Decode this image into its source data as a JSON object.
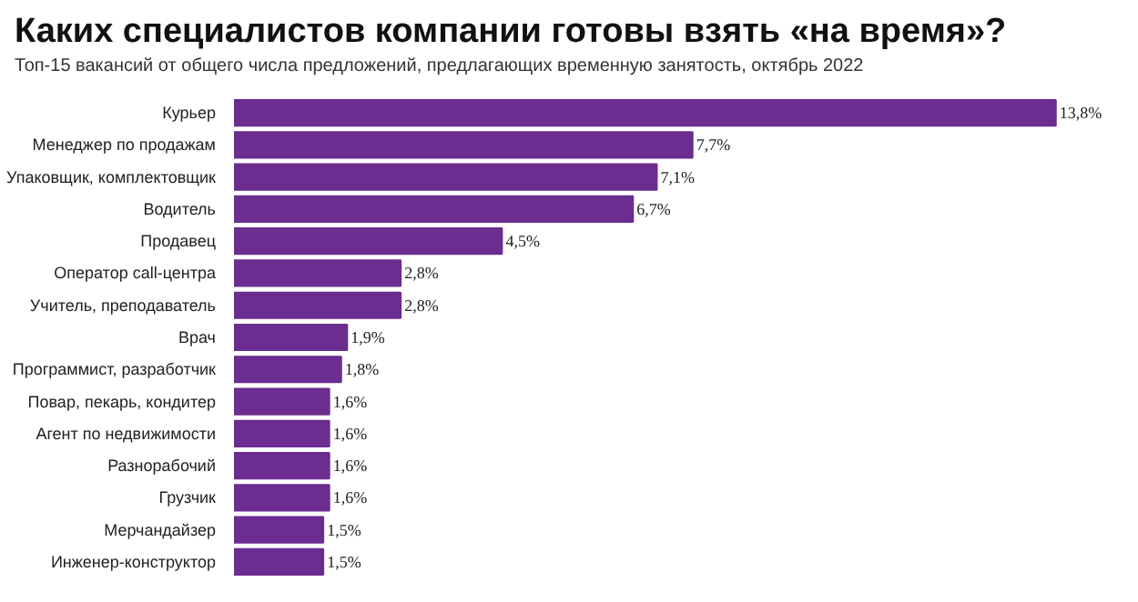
{
  "chart_data": {
    "type": "bar",
    "orientation": "horizontal",
    "title": "Каких специалистов компании готовы взять «на время»?",
    "subtitle": "Топ-15 вакансий от общего числа предложений, предлагающих временную занятость, октябрь 2022",
    "categories": [
      "Курьер",
      "Менеджер по продажам",
      "Упаковщик, комплектовщик",
      "Водитель",
      "Продавец",
      "Оператор call-центра",
      "Учитель, преподаватель",
      "Врач",
      "Программист, разработчик",
      "Повар, пекарь, кондитер",
      "Агент по недвижимости",
      "Разнорабочий",
      "Грузчик",
      "Мерчандайзер",
      "Инженер-конструктор"
    ],
    "values": [
      13.8,
      7.7,
      7.1,
      6.7,
      4.5,
      2.8,
      2.8,
      1.9,
      1.8,
      1.6,
      1.6,
      1.6,
      1.6,
      1.5,
      1.5
    ],
    "value_labels": [
      "13,8%",
      "7,7%",
      "7,1%",
      "6,7%",
      "4,5%",
      "2,8%",
      "2,8%",
      "1,9%",
      "1,8%",
      "1,6%",
      "1,6%",
      "1,6%",
      "1,6%",
      "1,5%",
      "1,5%"
    ],
    "color": "#6b2d8f"
  }
}
